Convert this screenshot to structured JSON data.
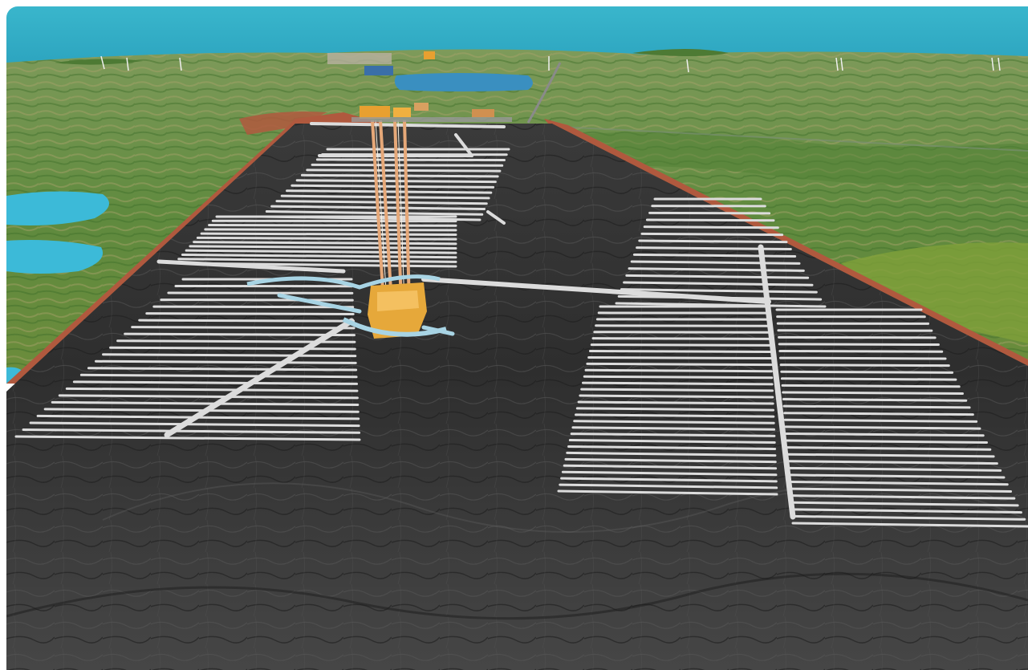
{
  "scene": {
    "subject": "3d-rendering-underground-repository",
    "colors": {
      "sea": "#2fb0c8",
      "sea_light": "#5cc8dc",
      "lake": "#3ab4dc",
      "land_green": "#5a8a3a",
      "land_olive": "#8a9a4a",
      "bedrock": "#3c3c3c",
      "bedrock_light": "#6a6a6a",
      "cut_edge": "#b0593e",
      "tunnel": "#dcdcdc",
      "ramp": "#a8d4e4",
      "shaft": "#e0a070",
      "surface_facility": "#e8a030"
    }
  }
}
